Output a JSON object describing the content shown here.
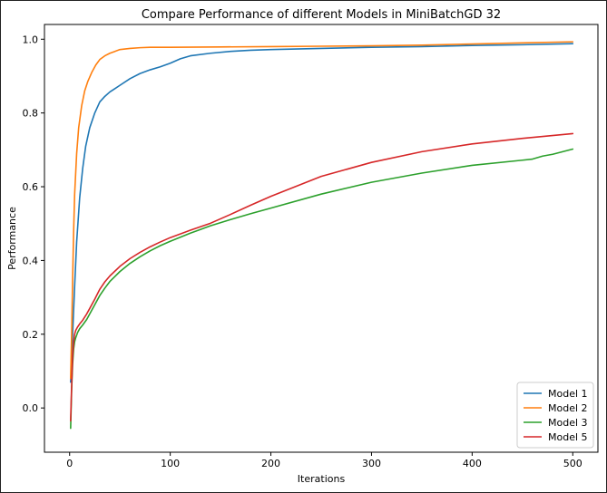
{
  "chart_data": {
    "type": "line",
    "title": "Compare Performance of different Models in MiniBatchGD 32",
    "xlabel": "Iterations",
    "ylabel": "Performance",
    "xlim": [
      -25,
      525
    ],
    "ylim": [
      -0.12,
      1.04
    ],
    "xticks": [
      0,
      100,
      200,
      300,
      400,
      500
    ],
    "yticks": [
      0.0,
      0.2,
      0.4,
      0.6,
      0.8,
      1.0
    ],
    "xtick_labels": [
      "0",
      "100",
      "200",
      "300",
      "400",
      "500"
    ],
    "ytick_labels": [
      "0.0",
      "0.2",
      "0.4",
      "0.6",
      "0.8",
      "1.0"
    ],
    "grid": false,
    "legend_position": "lower-right",
    "series": [
      {
        "name": "Model 1",
        "color": "#1f77b4",
        "x": [
          1,
          2,
          3,
          5,
          7,
          10,
          13,
          16,
          20,
          25,
          30,
          35,
          40,
          45,
          50,
          60,
          70,
          80,
          90,
          100,
          110,
          120,
          140,
          160,
          180,
          200,
          250,
          300,
          350,
          400,
          450,
          500
        ],
        "y": [
          0.07,
          0.12,
          0.2,
          0.33,
          0.45,
          0.57,
          0.65,
          0.71,
          0.76,
          0.8,
          0.83,
          0.845,
          0.857,
          0.866,
          0.875,
          0.893,
          0.907,
          0.917,
          0.925,
          0.935,
          0.947,
          0.955,
          0.962,
          0.967,
          0.97,
          0.972,
          0.975,
          0.978,
          0.98,
          0.983,
          0.985,
          0.988
        ]
      },
      {
        "name": "Model 2",
        "color": "#ff7f0e",
        "x": [
          1,
          2,
          3,
          4,
          5,
          7,
          9,
          12,
          15,
          18,
          22,
          26,
          30,
          35,
          40,
          45,
          50,
          60,
          70,
          80,
          100,
          150,
          200,
          250,
          300,
          350,
          400,
          450,
          500
        ],
        "y": [
          0.08,
          0.2,
          0.35,
          0.48,
          0.58,
          0.69,
          0.76,
          0.82,
          0.86,
          0.885,
          0.91,
          0.93,
          0.945,
          0.955,
          0.962,
          0.967,
          0.972,
          0.975,
          0.977,
          0.978,
          0.978,
          0.979,
          0.98,
          0.981,
          0.982,
          0.984,
          0.987,
          0.99,
          0.993
        ]
      },
      {
        "name": "Model 3",
        "color": "#2ca02c",
        "x": [
          1,
          2,
          3,
          4,
          5,
          6,
          8,
          10,
          13,
          17,
          20,
          25,
          30,
          35,
          40,
          50,
          60,
          70,
          80,
          90,
          100,
          120,
          140,
          160,
          180,
          200,
          250,
          300,
          350,
          400,
          450,
          460,
          470,
          480,
          500
        ],
        "y": [
          -0.055,
          0.05,
          0.12,
          0.16,
          0.18,
          0.19,
          0.205,
          0.215,
          0.225,
          0.24,
          0.255,
          0.28,
          0.305,
          0.325,
          0.343,
          0.37,
          0.392,
          0.41,
          0.426,
          0.44,
          0.452,
          0.474,
          0.494,
          0.511,
          0.527,
          0.542,
          0.58,
          0.612,
          0.637,
          0.658,
          0.672,
          0.675,
          0.683,
          0.688,
          0.702
        ]
      },
      {
        "name": "Model 5",
        "color": "#d62728",
        "x": [
          1,
          2,
          3,
          4,
          5,
          6,
          8,
          10,
          13,
          17,
          20,
          25,
          30,
          35,
          40,
          50,
          60,
          70,
          80,
          90,
          100,
          120,
          140,
          160,
          180,
          200,
          250,
          300,
          350,
          400,
          450,
          500
        ],
        "y": [
          -0.035,
          0.06,
          0.14,
          0.18,
          0.2,
          0.21,
          0.22,
          0.228,
          0.238,
          0.255,
          0.27,
          0.295,
          0.322,
          0.342,
          0.358,
          0.384,
          0.405,
          0.422,
          0.437,
          0.45,
          0.462,
          0.482,
          0.501,
          0.525,
          0.55,
          0.574,
          0.628,
          0.666,
          0.695,
          0.716,
          0.731,
          0.744
        ]
      }
    ]
  }
}
